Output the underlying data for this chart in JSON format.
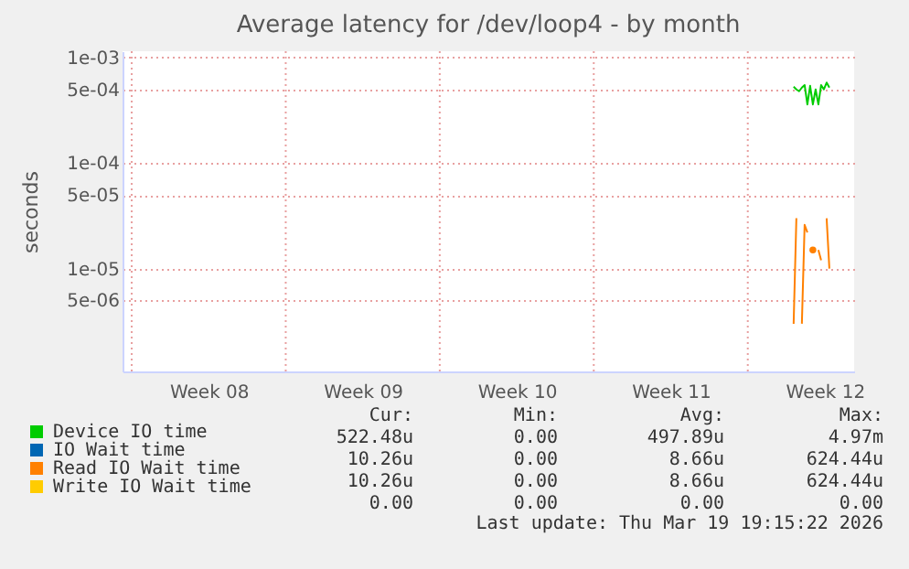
{
  "chart_data": {
    "type": "line",
    "title": "Average latency for /dev/loop4 - by month",
    "ylabel": "seconds",
    "log": "y",
    "grid": true,
    "legend": "bottom left",
    "marker": "none",
    "line_style": "solid",
    "ylim": [
      1.06e-06,
      0.00115
    ],
    "yticks": [
      {
        "value": 0.001,
        "label": "1e-03"
      },
      {
        "value": 0.0005,
        "label": "5e-04"
      },
      {
        "value": 0.0001,
        "label": "1e-04"
      },
      {
        "value": 5e-05,
        "label": "5e-05"
      },
      {
        "value": 1e-05,
        "label": "1e-05"
      },
      {
        "value": 5e-06,
        "label": "5e-06"
      }
    ],
    "xlim": [
      "2026-02-15T14:00",
      "2026-03-20T20:00"
    ],
    "xticks": [
      {
        "value": "2026-02-16T00:00",
        "label": null
      },
      {
        "value": "2026-02-19T12:00",
        "label": "Week 08"
      },
      {
        "value": "2026-02-23T00:00",
        "label": null
      },
      {
        "value": "2026-02-26T12:00",
        "label": "Week 09"
      },
      {
        "value": "2026-03-02T00:00",
        "label": null
      },
      {
        "value": "2026-03-05T12:00",
        "label": "Week 10"
      },
      {
        "value": "2026-03-09T00:00",
        "label": null
      },
      {
        "value": "2026-03-12T12:00",
        "label": "Week 11"
      },
      {
        "value": "2026-03-16T00:00",
        "label": null
      },
      {
        "value": "2026-03-19T12:00",
        "label": "Week 12"
      }
    ],
    "x": [
      "2026-03-18T02:00",
      "2026-03-18T05:00",
      "2026-03-18T08:00",
      "2026-03-18T11:00",
      "2026-03-18T14:00",
      "2026-03-18T17:00",
      "2026-03-18T20:00",
      "2026-03-18T23:00",
      "2026-03-19T02:00",
      "2026-03-19T05:00",
      "2026-03-19T08:00",
      "2026-03-19T11:00",
      "2026-03-19T14:00",
      "2026-03-19T17:00"
    ],
    "series": [
      {
        "name": "Device IO time",
        "color": "#00cc00",
        "values": [
          0.00053,
          0.0005,
          0.00048,
          0.00052,
          0.00055,
          0.00036,
          0.00054,
          0.00036,
          0.0005,
          0.00036,
          0.00055,
          0.0005,
          0.00058,
          0.00052
        ]
      },
      {
        "name": "IO Wait time",
        "color": "#0066b3",
        "values": [
          null,
          null,
          null,
          null,
          null,
          null,
          null,
          null,
          null,
          null,
          null,
          null,
          null,
          null
        ]
      },
      {
        "name": "Read IO Wait time",
        "color": "#ff8000",
        "values": [
          3e-06,
          3e-05,
          null,
          3e-06,
          2.6e-05,
          2.2e-05,
          null,
          1.5e-05,
          null,
          1.5e-05,
          1.2e-05,
          null,
          3e-05,
          1e-05
        ]
      },
      {
        "name": "Write IO Wait time",
        "color": "#ffcc00",
        "values": [
          null,
          null,
          null,
          null,
          null,
          null,
          null,
          null,
          null,
          null,
          null,
          null,
          null,
          null
        ]
      }
    ],
    "annotations": [
      "Cur:",
      "Min:",
      "Avg:",
      "Max:",
      "522.48u",
      "0.00",
      "497.89u",
      "4.97m",
      "10.26u",
      "0.00",
      "8.66u",
      "624.44u",
      "10.26u",
      "0.00",
      "8.66u",
      "624.44u",
      "0.00",
      "0.00",
      "0.00",
      "0.00",
      "Last update: Thu Mar 19 19:15:22 2026"
    ]
  }
}
